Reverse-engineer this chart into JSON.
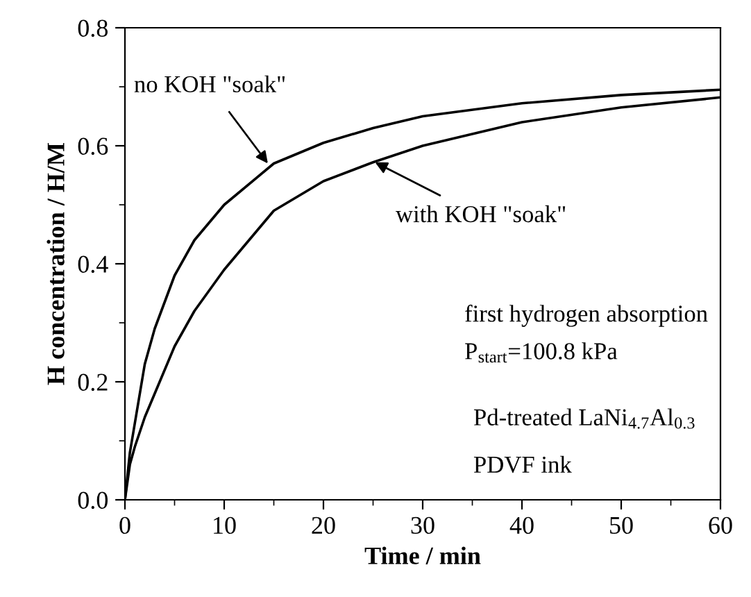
{
  "chart_data": {
    "type": "line",
    "xlabel": "Time / min",
    "ylabel": "H concentration / H/M",
    "xlim": [
      0,
      60
    ],
    "ylim": [
      0,
      0.8
    ],
    "xticks": [
      0,
      10,
      20,
      30,
      40,
      50,
      60
    ],
    "yticks": [
      {
        "value": 0,
        "label": "0.0"
      },
      0.2,
      0.4,
      0.6,
      0.8
    ],
    "grid": false,
    "legend": false,
    "marker": "none",
    "line_style": "solid",
    "series": [
      {
        "color": "#000000",
        "x": [
          0,
          0.5,
          1,
          2,
          3,
          5,
          7,
          10,
          15,
          20,
          25,
          30,
          40,
          50,
          60
        ],
        "values": [
          0,
          0.08,
          0.13,
          0.23,
          0.29,
          0.38,
          0.44,
          0.5,
          0.57,
          0.605,
          0.63,
          0.65,
          0.672,
          0.686,
          0.695
        ]
      },
      {
        "color": "#000000",
        "x": [
          0,
          0.5,
          1,
          2,
          3,
          5,
          7,
          10,
          15,
          20,
          25,
          30,
          40,
          50,
          60
        ],
        "values": [
          0,
          0.06,
          0.09,
          0.14,
          0.18,
          0.26,
          0.32,
          0.39,
          0.49,
          0.54,
          0.572,
          0.6,
          0.64,
          0.665,
          0.682
        ]
      }
    ],
    "annotations": [
      {
        "text": "no KOH \"soak\"",
        "x": 14.4,
        "y": 0.57
      },
      {
        "text": "with KOH \"soak\"",
        "x": 25.2,
        "y": 0.572
      },
      "first hydrogen absorption",
      "P$_{start}$=100.8 kPa",
      "Pd-treated LaNi$_{4.7}$Al$_{0.3}$",
      "PDVF ink"
    ]
  }
}
